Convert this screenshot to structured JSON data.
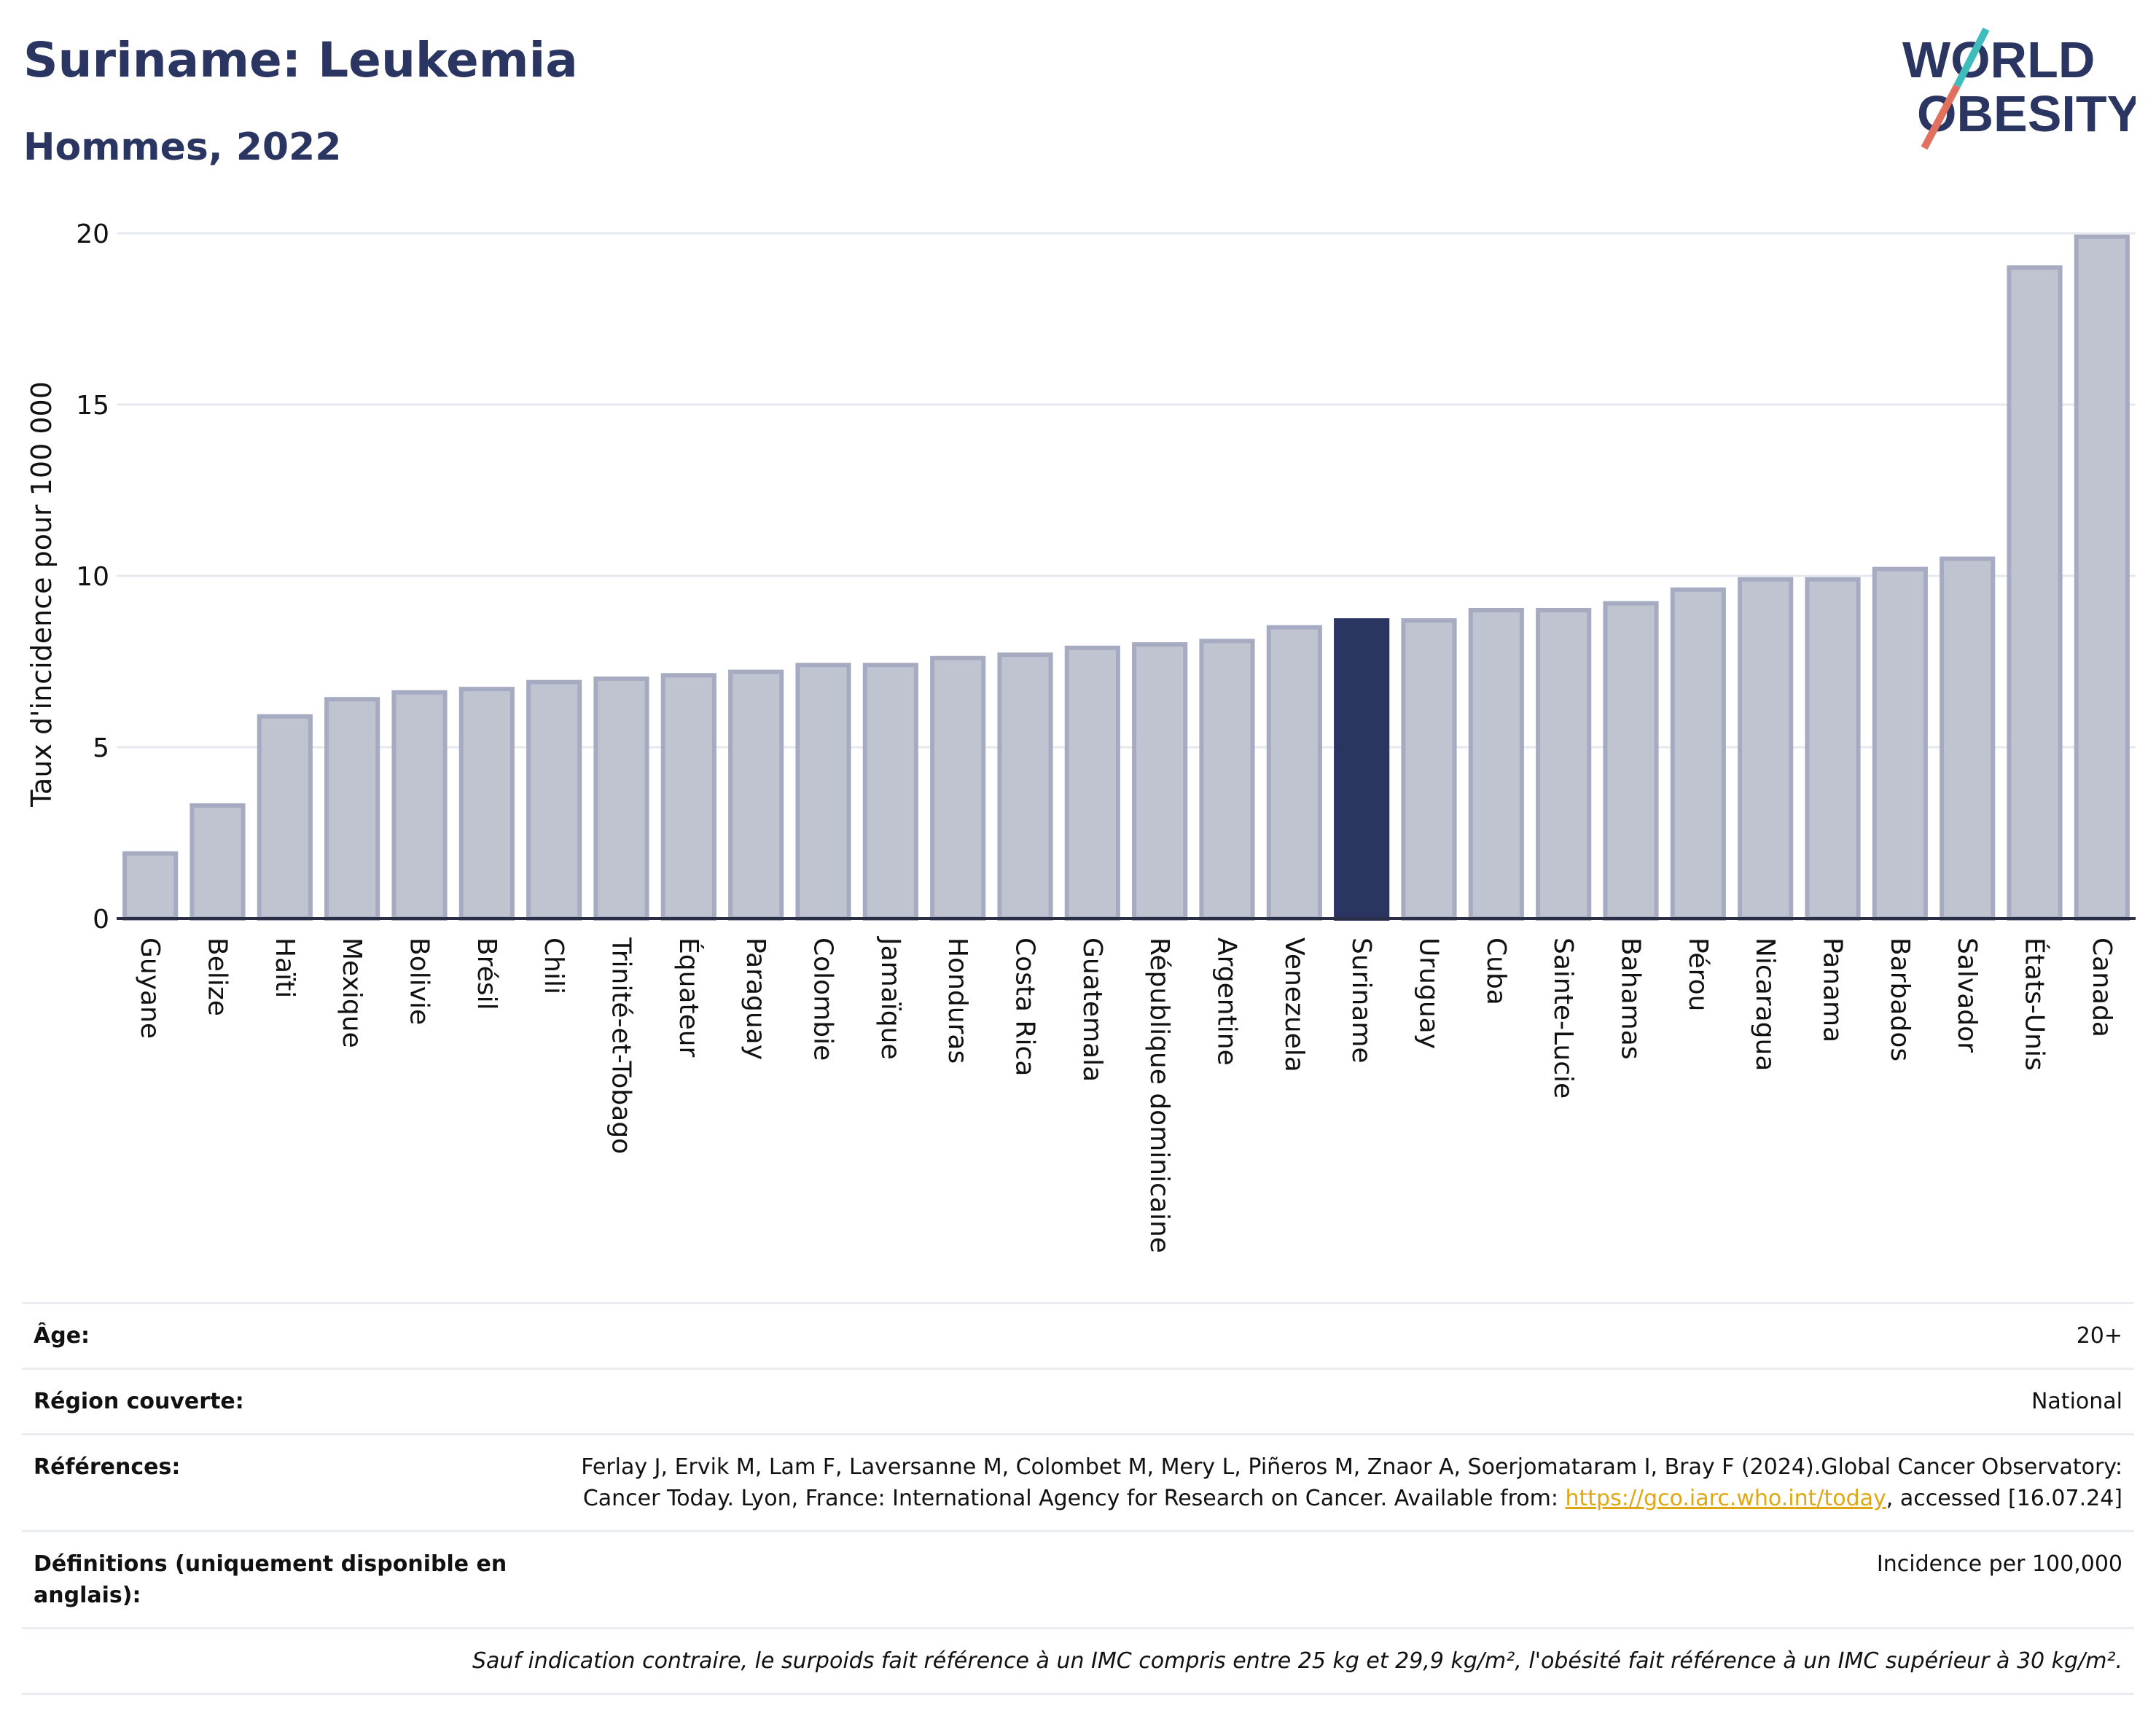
{
  "title": "Suriname: Leukemia",
  "subtitle": "Hommes, 2022",
  "logo": {
    "line1": "WORLD",
    "line2": "OBESITY"
  },
  "colors": {
    "bar": "#c0c4d1",
    "bar_border": "#a6abc1",
    "highlight": "#2a3561",
    "grid": "#e6e8ef",
    "title": "#2a3561",
    "link": "#e0a712"
  },
  "chart_data": {
    "type": "bar",
    "ylabel": "Taux d'incidence pour 100 000",
    "xlabel": "",
    "ylim": [
      0,
      20
    ],
    "yticks": [
      0,
      5,
      10,
      15,
      20
    ],
    "grid": true,
    "highlight": "Suriname",
    "categories": [
      "Guyane",
      "Belize",
      "Haïti",
      "Mexique",
      "Bolivie",
      "Brésil",
      "Chili",
      "Trinité-et-Tobago",
      "Équateur",
      "Paraguay",
      "Colombie",
      "Jamaïque",
      "Honduras",
      "Costa Rica",
      "Guatemala",
      "République dominicaine",
      "Argentine",
      "Venezuela",
      "Suriname",
      "Uruguay",
      "Cuba",
      "Sainte-Lucie",
      "Bahamas",
      "Pérou",
      "Nicaragua",
      "Panama",
      "Barbados",
      "Salvador",
      "États-Unis",
      "Canada"
    ],
    "values": [
      1.9,
      3.3,
      5.9,
      6.4,
      6.6,
      6.7,
      6.9,
      7.0,
      7.1,
      7.2,
      7.4,
      7.4,
      7.6,
      7.7,
      7.9,
      8.0,
      8.1,
      8.5,
      8.7,
      8.7,
      9.0,
      9.0,
      9.2,
      9.6,
      9.9,
      9.9,
      10.2,
      10.5,
      19.0,
      19.9
    ]
  },
  "meta": {
    "age_label": "Âge:",
    "age_value": "20+",
    "region_label": "Région couverte:",
    "region_value": "National",
    "references_label": "Références:",
    "references_text": "Ferlay J, Ervik M, Lam F, Laversanne M, Colombet M, Mery L, Piñeros M, Znaor A, Soerjomataram I, Bray F (2024).Global Cancer Observatory: Cancer Today. Lyon, France: International Agency for Research on Cancer. Available from:",
    "references_link": "https://gco.iarc.who.int/today",
    "references_tail": ", accessed [16.07.24]",
    "definitions_label": "Définitions (uniquement disponible en anglais):",
    "definitions_value": "Incidence per 100,000",
    "note": "Sauf indication contraire, le surpoids fait référence à un IMC compris entre 25 kg et 29,9 kg/m², l'obésité fait référence à un IMC supérieur à 30 kg/m²."
  }
}
